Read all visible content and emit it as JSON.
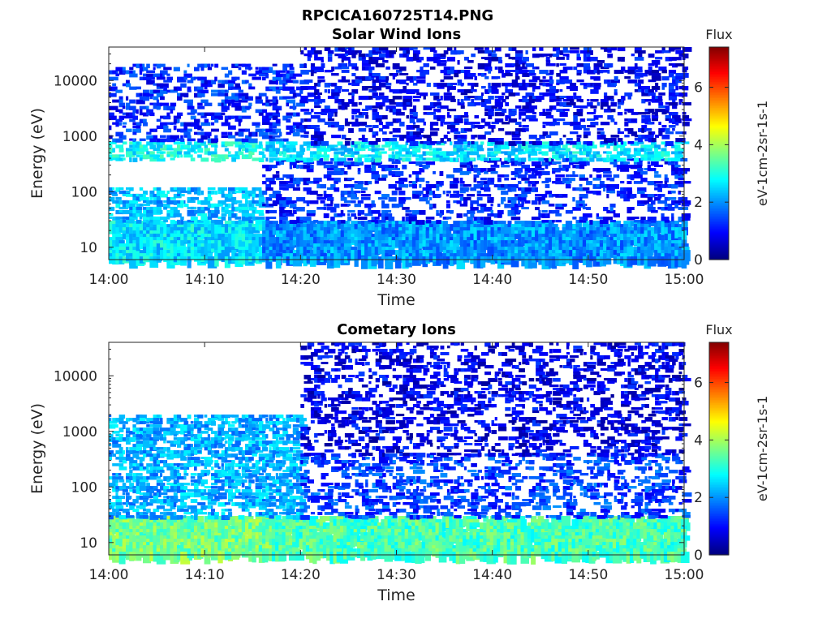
{
  "figure": {
    "title": "RPCICA160725T14.PNG"
  },
  "chart_data": [
    {
      "type": "heatmap",
      "title": "Solar Wind Ions",
      "xlabel": "Time",
      "ylabel": "Energy (eV)",
      "x_range": [
        "14:00",
        "15:00"
      ],
      "x_ticks": [
        "14:00",
        "14:10",
        "14:20",
        "14:30",
        "14:40",
        "14:50",
        "15:00"
      ],
      "y_scale": "log",
      "y_range": [
        6,
        40000
      ],
      "y_ticks": [
        10,
        100,
        1000,
        10000
      ],
      "y_tick_labels": [
        "10",
        "100",
        "1000",
        "10000"
      ],
      "colorbar": {
        "title": "Flux",
        "label": "eV-1cm-2sr-1s-1",
        "range": [
          0,
          7.4
        ],
        "ticks": [
          "0",
          "2",
          "4",
          "6"
        ],
        "colormap": "jet"
      },
      "bands": [
        {
          "time_min": [
            0,
            16
          ],
          "energy_eV": [
            6,
            30
          ],
          "flux": 2.6
        },
        {
          "time_min": [
            0,
            16
          ],
          "energy_eV": [
            30,
            120
          ],
          "flux": 2.3
        },
        {
          "time_min": [
            0,
            16
          ],
          "energy_eV": [
            400,
            800
          ],
          "flux": 2.8
        },
        {
          "time_min": [
            0,
            20
          ],
          "energy_eV": [
            800,
            20000
          ],
          "flux": 1.2
        },
        {
          "time_min": [
            16,
            60
          ],
          "energy_eV": [
            6,
            30
          ],
          "flux": 2.0
        },
        {
          "time_min": [
            16,
            60
          ],
          "energy_eV": [
            30,
            400
          ],
          "flux": 1.2
        },
        {
          "time_min": [
            16,
            60
          ],
          "energy_eV": [
            400,
            800
          ],
          "flux": 2.6
        },
        {
          "time_min": [
            20,
            60
          ],
          "energy_eV": [
            800,
            40000
          ],
          "flux": 0.9
        }
      ]
    },
    {
      "type": "heatmap",
      "title": "Cometary Ions",
      "xlabel": "Time",
      "ylabel": "Energy (eV)",
      "x_range": [
        "14:00",
        "15:00"
      ],
      "x_ticks": [
        "14:00",
        "14:10",
        "14:20",
        "14:30",
        "14:40",
        "14:50",
        "15:00"
      ],
      "y_scale": "log",
      "y_range": [
        6,
        40000
      ],
      "y_ticks": [
        10,
        100,
        1000,
        10000
      ],
      "y_tick_labels": [
        "10",
        "100",
        "1000",
        "10000"
      ],
      "colorbar": {
        "title": "Flux",
        "label": "eV-1cm-2sr-1s-1",
        "range": [
          0,
          7.4
        ],
        "ticks": [
          "0",
          "2",
          "4",
          "6"
        ],
        "colormap": "jet"
      },
      "bands": [
        {
          "time_min": [
            0,
            17
          ],
          "energy_eV": [
            6,
            30
          ],
          "flux": 3.6
        },
        {
          "time_min": [
            17,
            60
          ],
          "energy_eV": [
            6,
            30
          ],
          "flux": 3.3
        },
        {
          "time_min": [
            0,
            20
          ],
          "energy_eV": [
            30,
            2000
          ],
          "flux": 2.2
        },
        {
          "time_min": [
            20,
            60
          ],
          "energy_eV": [
            30,
            400
          ],
          "flux": 1.4
        },
        {
          "time_min": [
            20,
            60
          ],
          "energy_eV": [
            400,
            40000
          ],
          "flux": 0.8
        }
      ]
    }
  ]
}
